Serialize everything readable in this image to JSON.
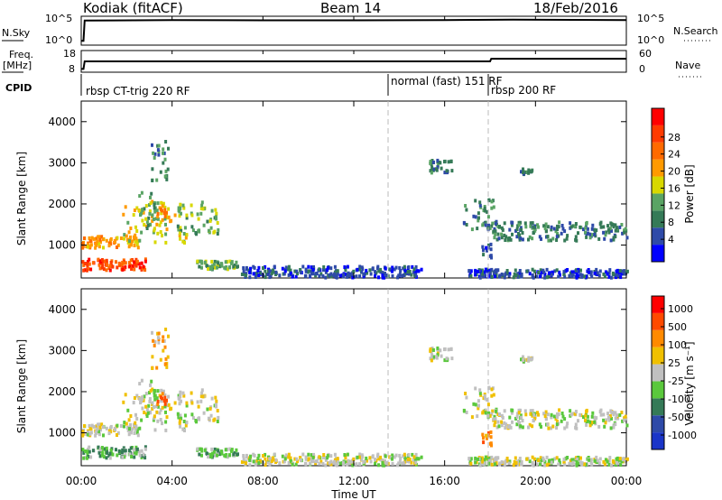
{
  "header": {
    "site": "Kodiak (fitACF)",
    "beam": "Beam 14",
    "date": "18/Feb/2016"
  },
  "chart_data": {
    "type": "heatmap",
    "xlabel": "Time UT",
    "x_ticks": [
      "00:00",
      "04:00",
      "08:00",
      "12:00",
      "16:00",
      "20:00",
      "00:00"
    ],
    "x_range_hours": [
      0,
      24
    ],
    "panels": {
      "nsky": {
        "left_label": "N.Sky",
        "right_label": "N.Search",
        "left_ticks": [
          "10^5",
          "10^0"
        ],
        "right_ticks": [
          "10^5",
          "10^0"
        ],
        "series": [
          {
            "t": 0,
            "v": 0.15
          },
          {
            "t": 0.1,
            "v": 0.15
          },
          {
            "t": 0.15,
            "v": 0.85
          },
          {
            "t": 4,
            "v": 0.87
          },
          {
            "t": 8,
            "v": 0.86
          },
          {
            "t": 12,
            "v": 0.86
          },
          {
            "t": 16,
            "v": 0.87
          },
          {
            "t": 19,
            "v": 0.88
          },
          {
            "t": 24,
            "v": 0.87
          }
        ]
      },
      "freq": {
        "left_label_1": "Freq.",
        "left_label_2": "[MHz]",
        "right_label": "Nave",
        "left_ticks": [
          "18",
          "8"
        ],
        "right_ticks": [
          "60",
          "0"
        ],
        "series": [
          {
            "t": 0,
            "v": 0.15
          },
          {
            "t": 0.1,
            "v": 0.15
          },
          {
            "t": 0.15,
            "v": 0.5
          },
          {
            "t": 18,
            "v": 0.5
          },
          {
            "t": 18.05,
            "v": 0.62
          },
          {
            "t": 24,
            "v": 0.62
          }
        ]
      },
      "cpid": {
        "label": "CPID",
        "segments": [
          {
            "start": 0,
            "end": 13.5,
            "text": "rbsp CT-trig 220 RF"
          },
          {
            "start": 13.5,
            "end": 17.9,
            "text": "normal (fast) 151 RF"
          },
          {
            "start": 17.9,
            "end": 24,
            "text": "rbsp 200 RF"
          }
        ]
      }
    },
    "power": {
      "ylabel": "Slant Range [km]",
      "y_range": [
        200,
        4500
      ],
      "y_ticks": [
        1000,
        2000,
        3000,
        4000
      ],
      "colorbar_label": "Power [dB]",
      "colorbar_ticks": [
        4,
        8,
        12,
        16,
        20,
        24,
        28
      ],
      "colors": [
        "#0000ff",
        "#2e4aa8",
        "#357a57",
        "#5aa464",
        "#d8d800",
        "#ff9a00",
        "#ff6a00",
        "#ff3a00",
        "#ff0000"
      ]
    },
    "velocity": {
      "ylabel": "Slant Range [km]",
      "y_range": [
        200,
        4500
      ],
      "y_ticks": [
        1000,
        2000,
        3000,
        4000
      ],
      "colorbar_label": "Velocity [m s⁻¹]",
      "colorbar_ticks": [
        "1000",
        "500",
        "100",
        "25",
        "-25",
        "-100",
        "-500",
        "-1000"
      ],
      "colors": [
        "#1a35c8",
        "#2e4aa8",
        "#357a57",
        "#5ac83c",
        "#c0c0c0",
        "#f0c000",
        "#ff8a00",
        "#ff4a00",
        "#ff0000"
      ]
    },
    "blobs": [
      {
        "t0": 0.0,
        "t1": 2.8,
        "r0": 420,
        "r1": 700,
        "pc": 7,
        "vc": 3
      },
      {
        "t0": 0.0,
        "t1": 2.5,
        "r0": 950,
        "r1": 1250,
        "pc": 5,
        "vc": 4
      },
      {
        "t0": 1.8,
        "t1": 4.6,
        "r0": 1100,
        "r1": 2100,
        "pc": 4,
        "vc": 4
      },
      {
        "t0": 2.5,
        "t1": 3.3,
        "r0": 1400,
        "r1": 2400,
        "pc": 3,
        "vc": 4
      },
      {
        "t0": 3.3,
        "t1": 3.7,
        "r0": 1600,
        "r1": 2000,
        "pc": 5,
        "vc": 6
      },
      {
        "t0": 3.0,
        "t1": 3.8,
        "r0": 2600,
        "r1": 3600,
        "pc": 2,
        "vc": 5
      },
      {
        "t0": 4.2,
        "t1": 6.0,
        "r0": 1300,
        "r1": 2100,
        "pc": 3,
        "vc": 4
      },
      {
        "t0": 5.0,
        "t1": 7.0,
        "r0": 450,
        "r1": 650,
        "pc": 3,
        "vc": 3
      },
      {
        "t0": 7.0,
        "t1": 15.0,
        "r0": 250,
        "r1": 520,
        "pc": 1,
        "vc": 4
      },
      {
        "t0": 15.3,
        "t1": 16.3,
        "r0": 2800,
        "r1": 3100,
        "pc": 2,
        "vc": 4
      },
      {
        "t0": 16.8,
        "t1": 18.3,
        "r0": 1400,
        "r1": 2150,
        "pc": 2,
        "vc": 4
      },
      {
        "t0": 17.6,
        "t1": 18.0,
        "r0": 650,
        "r1": 1100,
        "pc": 1,
        "vc": 6
      },
      {
        "t0": 18.0,
        "t1": 24.0,
        "r0": 1150,
        "r1": 1600,
        "pc": 2,
        "vc": 4
      },
      {
        "t0": 19.2,
        "t1": 19.8,
        "r0": 2750,
        "r1": 2900,
        "pc": 2,
        "vc": 4
      },
      {
        "t0": 17.0,
        "t1": 24.0,
        "r0": 250,
        "r1": 450,
        "pc": 1,
        "vc": 4
      }
    ]
  }
}
